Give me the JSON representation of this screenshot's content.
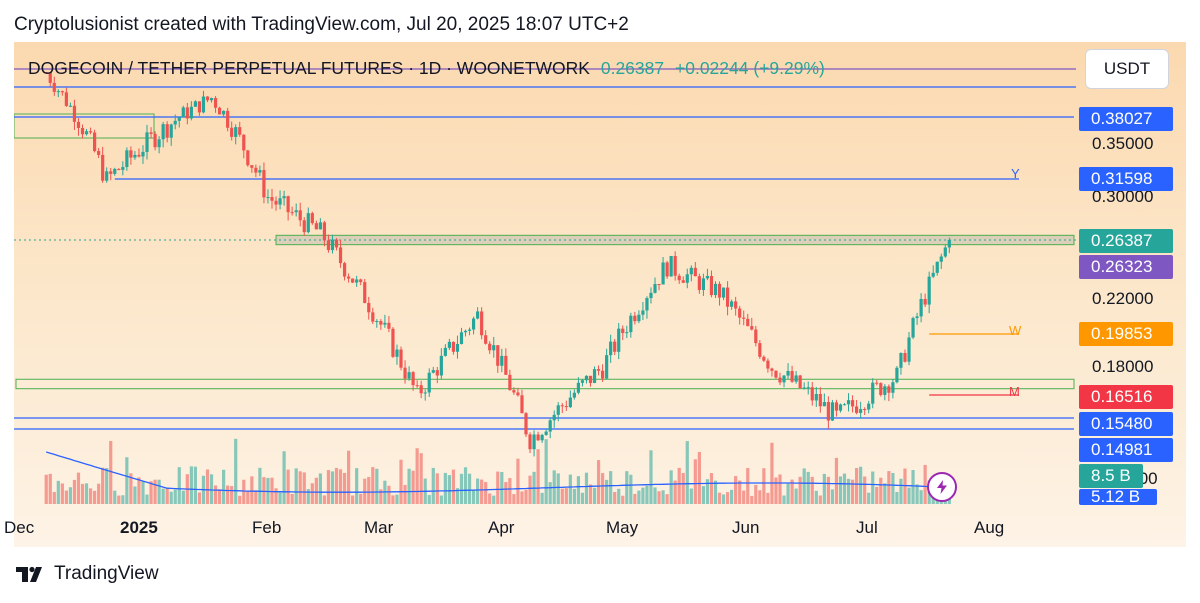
{
  "header": {
    "credit": "Cryptolusionist created with TradingView.com, Jul 20, 2025 18:07 UTC+2"
  },
  "symbol": {
    "title": "DOGECOIN / TETHER PERPETUAL FUTURES · 1D · WOONETWORK",
    "price": "0.26387",
    "change": "+0.02244 (+9.29%)",
    "up_color": "#26a69a",
    "down_color": "#ef5350"
  },
  "currency_button": "USDT",
  "price_labels": [
    {
      "text": "0.38027",
      "color": "#2962ff",
      "value": 0.38027
    },
    {
      "text": "0.31598",
      "color": "#2962ff",
      "value": 0.31598
    },
    {
      "text": "0.26387",
      "color": "#26a69a",
      "value": 0.26387
    },
    {
      "text": "0.26323",
      "color": "#7e57c2",
      "value": 0.26323
    },
    {
      "text": "0.19853",
      "color": "#ff9800",
      "value": 0.19853
    },
    {
      "text": "0.16516",
      "color": "#f23645",
      "value": 0.16516
    },
    {
      "text": "0.15480",
      "color": "#2962ff",
      "value": 0.1548
    },
    {
      "text": "0.14981",
      "color": "#2962ff",
      "value": 0.14981
    },
    {
      "text": "8.5 B",
      "color": "#26a69a"
    },
    {
      "text": "5.12 B",
      "color": "#2962ff"
    }
  ],
  "price_ticks": [
    "0.35000",
    "0.30000",
    "0.22000",
    "0.18000",
    ".00"
  ],
  "time_ticks": [
    {
      "text": "Dec",
      "bold": false
    },
    {
      "text": "2025",
      "bold": true
    },
    {
      "text": "Feb",
      "bold": false
    },
    {
      "text": "Mar",
      "bold": false
    },
    {
      "text": "Apr",
      "bold": false
    },
    {
      "text": "May",
      "bold": false
    },
    {
      "text": "Jun",
      "bold": false
    },
    {
      "text": "Jul",
      "bold": false
    },
    {
      "text": "Aug",
      "bold": false
    }
  ],
  "level_tags": {
    "y": "Y",
    "w": "W",
    "m": "M"
  },
  "icons": {
    "lightning": "lightning-icon",
    "logo": "tradingview-logo-icon"
  },
  "footer": {
    "brand": "TradingView"
  },
  "chart_data": {
    "type": "candlestick",
    "interval": "1D",
    "x_range": [
      "2024-12-01",
      "2025-08-10"
    ],
    "y_range": [
      0.132,
      0.42
    ],
    "key_points": [
      {
        "date": "2024-12-08",
        "close": 0.45
      },
      {
        "date": "2024-12-23",
        "close": 0.315
      },
      {
        "date": "2025-01-18",
        "close": 0.41
      },
      {
        "date": "2025-02-01",
        "close": 0.3
      },
      {
        "date": "2025-02-14",
        "close": 0.27
      },
      {
        "date": "2025-03-10",
        "close": 0.165
      },
      {
        "date": "2025-03-25",
        "close": 0.21
      },
      {
        "date": "2025-04-07",
        "close": 0.145
      },
      {
        "date": "2025-04-25",
        "close": 0.18
      },
      {
        "date": "2025-05-11",
        "close": 0.245
      },
      {
        "date": "2025-05-24",
        "close": 0.225
      },
      {
        "date": "2025-06-06",
        "close": 0.18
      },
      {
        "date": "2025-06-22",
        "close": 0.155
      },
      {
        "date": "2025-07-07",
        "close": 0.175
      },
      {
        "date": "2025-07-20",
        "close": 0.26387
      }
    ],
    "horizontal_levels": [
      0.38027,
      0.31598,
      0.19853,
      0.16516,
      0.1548,
      0.14981
    ],
    "zones": [
      {
        "from": 0.2604,
        "to": 0.2678,
        "label": "resistance zone"
      },
      {
        "from": 0.1685,
        "to": 0.1735,
        "label": "support zone"
      }
    ],
    "volume_last": "8.5 B",
    "volume_ma": "5.12 B"
  }
}
